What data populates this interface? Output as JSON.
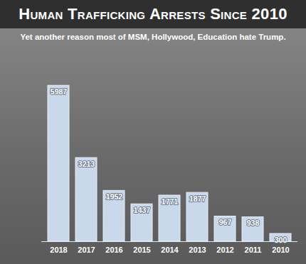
{
  "chart_data": {
    "type": "bar",
    "title": "Human Trafficking Arrests Since 2010",
    "subtitle": "Yet another reason most of MSM, Hollywood, Education hate Trump.",
    "categories": [
      "2018",
      "2017",
      "2016",
      "2015",
      "2014",
      "2013",
      "2012",
      "2011",
      "2010"
    ],
    "values": [
      5987,
      3213,
      1952,
      1437,
      1771,
      1877,
      967,
      938,
      300
    ],
    "color": "#c9d8ea",
    "ylim": [
      0,
      7300
    ],
    "data_labels": true,
    "tick_labels": "x",
    "grid": false
  }
}
